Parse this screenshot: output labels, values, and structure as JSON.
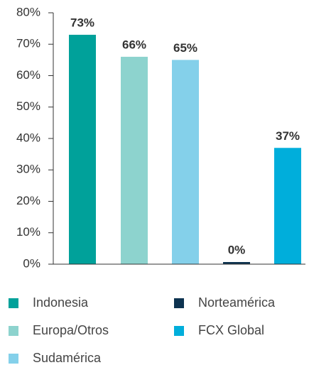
{
  "chart_data": {
    "type": "bar",
    "categories": [
      "Indonesia",
      "Europa/Otros",
      "Sudamérica",
      "Norteamérica",
      "FCX Global"
    ],
    "values": [
      73,
      66,
      65,
      0,
      37
    ],
    "value_labels": [
      "73%",
      "66%",
      "65%",
      "0%",
      "37%"
    ],
    "colors": [
      "#00a19a",
      "#8dd3ce",
      "#84d0ea",
      "#0d3350",
      "#00aedb"
    ],
    "ylim": [
      0,
      80
    ],
    "yticks": [
      {
        "value": 0,
        "label": "0%"
      },
      {
        "value": 10,
        "label": "10%"
      },
      {
        "value": 20,
        "label": "20%"
      },
      {
        "value": 30,
        "label": "30%"
      },
      {
        "value": 40,
        "label": "40%"
      },
      {
        "value": 50,
        "label": "50%"
      },
      {
        "value": 60,
        "label": "60%"
      },
      {
        "value": 70,
        "label": "70%"
      },
      {
        "value": 80,
        "label": "80%"
      }
    ],
    "grid": false,
    "legend": "bottom"
  }
}
